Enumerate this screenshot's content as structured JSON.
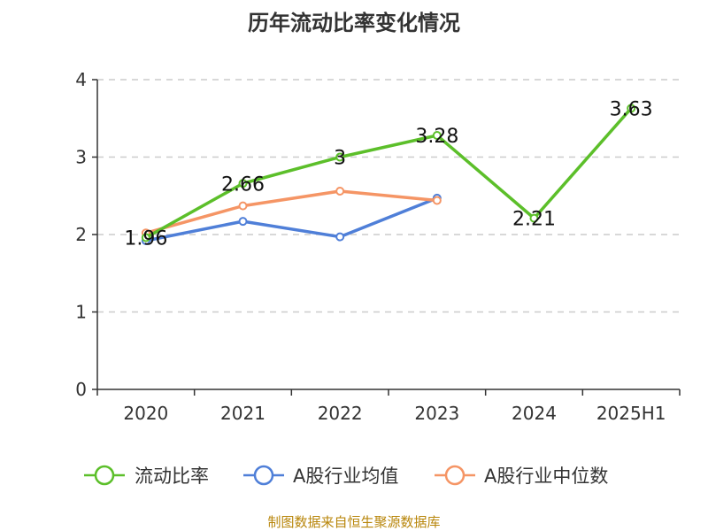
{
  "chart_data": {
    "type": "line",
    "title": "历年流动比率变化情况",
    "categories": [
      "2020",
      "2021",
      "2022",
      "2023",
      "2024",
      "2025H1"
    ],
    "y_ticks": [
      "0",
      "1",
      "2",
      "3",
      "4"
    ],
    "ylim": [
      0,
      4
    ],
    "grid": true,
    "legend_position": "bottom",
    "series": [
      {
        "name": "流动比率",
        "color": "#5cbf2a",
        "values": [
          1.96,
          2.66,
          3.0,
          3.28,
          2.21,
          3.63
        ],
        "labels": [
          "1.96",
          "2.66",
          "3",
          "3.28",
          "2.21",
          "3.63"
        ]
      },
      {
        "name": "A股行业均值",
        "color": "#4f7fd8",
        "values": [
          1.92,
          2.17,
          1.97,
          2.47,
          null,
          null
        ]
      },
      {
        "name": "A股行业中位数",
        "color": "#f59565",
        "values": [
          2.02,
          2.37,
          2.56,
          2.44,
          null,
          null
        ]
      }
    ],
    "source": "制图数据来自恒生聚源数据库"
  }
}
